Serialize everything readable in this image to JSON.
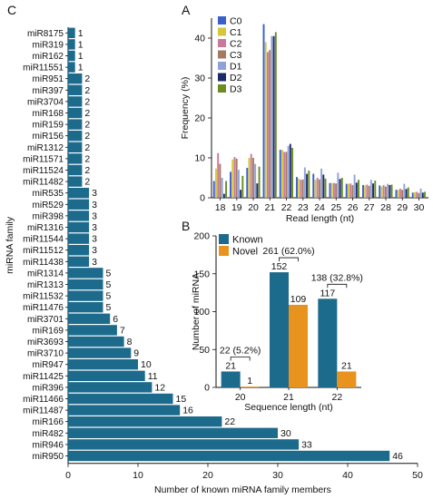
{
  "chart_data": [
    {
      "panel": "C",
      "type": "bar",
      "orientation": "horizontal",
      "categories": [
        "miR8175",
        "miR319",
        "miR162",
        "miR11551",
        "miR951",
        "miR397",
        "miR3704",
        "miR168",
        "miR159",
        "miR156",
        "miR1312",
        "miR11571",
        "miR11524",
        "miR11482",
        "miR535",
        "miR529",
        "miR398",
        "miR1316",
        "miR11544",
        "miR11512",
        "miR11438",
        "miR1314",
        "miR1313",
        "miR11532",
        "miR11476",
        "miR3701",
        "miR169",
        "miR3693",
        "miR3710",
        "miR947",
        "miR11425",
        "miR396",
        "miR11466",
        "miR11487",
        "miR166",
        "miR482",
        "miR946",
        "miR950"
      ],
      "values": [
        1,
        1,
        1,
        1,
        2,
        2,
        2,
        2,
        2,
        2,
        2,
        2,
        2,
        2,
        3,
        3,
        3,
        3,
        3,
        3,
        3,
        5,
        5,
        5,
        5,
        6,
        7,
        8,
        9,
        10,
        11,
        12,
        15,
        16,
        22,
        30,
        33,
        46
      ],
      "xlabel": "Number of known miRNA family members",
      "ylabel": "miRNA family",
      "xlim": [
        0,
        50
      ],
      "xticks": [
        0,
        10,
        20,
        30,
        40,
        50
      ],
      "bar_color": "#1c6a8c"
    },
    {
      "panel": "A",
      "type": "bar",
      "categories": [
        18,
        19,
        20,
        21,
        22,
        23,
        24,
        25,
        26,
        27,
        28,
        29,
        30
      ],
      "series": [
        {
          "name": "C0",
          "color": "#3a5fcd",
          "values": [
            4.2,
            6.5,
            7.5,
            43.5,
            12.0,
            5.2,
            6.0,
            3.7,
            3.5,
            3.2,
            3.1,
            2.0,
            1.3
          ]
        },
        {
          "name": "C1",
          "color": "#d4c83a",
          "values": [
            7.3,
            9.6,
            10.0,
            39.0,
            12.0,
            4.8,
            4.5,
            3.7,
            3.5,
            3.1,
            2.8,
            2.0,
            1.4
          ]
        },
        {
          "name": "C2",
          "color": "#c97a9a",
          "values": [
            11.2,
            10.2,
            11.0,
            36.5,
            11.5,
            4.5,
            5.0,
            3.7,
            3.6,
            3.3,
            3.2,
            2.3,
            1.5
          ]
        },
        {
          "name": "C3",
          "color": "#a57a62",
          "values": [
            8.5,
            9.8,
            10.0,
            37.0,
            11.5,
            4.6,
            4.6,
            3.6,
            3.2,
            3.0,
            2.8,
            2.0,
            1.2
          ]
        },
        {
          "name": "D1",
          "color": "#8fa3d9",
          "values": [
            5.0,
            7.0,
            8.5,
            40.5,
            13.0,
            7.6,
            7.3,
            6.3,
            5.8,
            4.5,
            3.5,
            3.5,
            2.3
          ]
        },
        {
          "name": "D2",
          "color": "#1c2a6b",
          "values": [
            1.0,
            2.0,
            3.6,
            40.5,
            13.5,
            6.0,
            5.8,
            4.7,
            3.8,
            3.6,
            3.2,
            2.2,
            1.3
          ]
        },
        {
          "name": "D3",
          "color": "#6b8c23",
          "values": [
            4.2,
            5.5,
            7.8,
            41.5,
            12.5,
            6.8,
            4.8,
            5.0,
            4.5,
            4.3,
            3.3,
            2.6,
            1.5
          ]
        }
      ],
      "xlabel": "Read length (nt)",
      "ylabel": "Frequency (%)",
      "ylim": [
        0,
        45
      ],
      "yticks": [
        0,
        10,
        20,
        30,
        40
      ],
      "legend": "top-left"
    },
    {
      "panel": "B",
      "type": "bar",
      "categories": [
        20,
        21,
        22
      ],
      "series": [
        {
          "name": "Known",
          "color": "#1c6a8c",
          "values": [
            21,
            152,
            117
          ]
        },
        {
          "name": "Novel",
          "color": "#e8931e",
          "values": [
            1,
            109,
            21
          ]
        }
      ],
      "totals": [
        "22 (5.2%)",
        "261 (62.0%)",
        "138 (32.8%)"
      ],
      "xlabel": "Sequence length (nt)",
      "ylabel": "Number of miRNA",
      "ylim": [
        0,
        200
      ],
      "yticks": [
        0,
        50,
        100,
        150,
        200
      ],
      "legend": "top-left"
    }
  ],
  "panel_labels": {
    "a": "A",
    "b": "B",
    "c": "C"
  }
}
